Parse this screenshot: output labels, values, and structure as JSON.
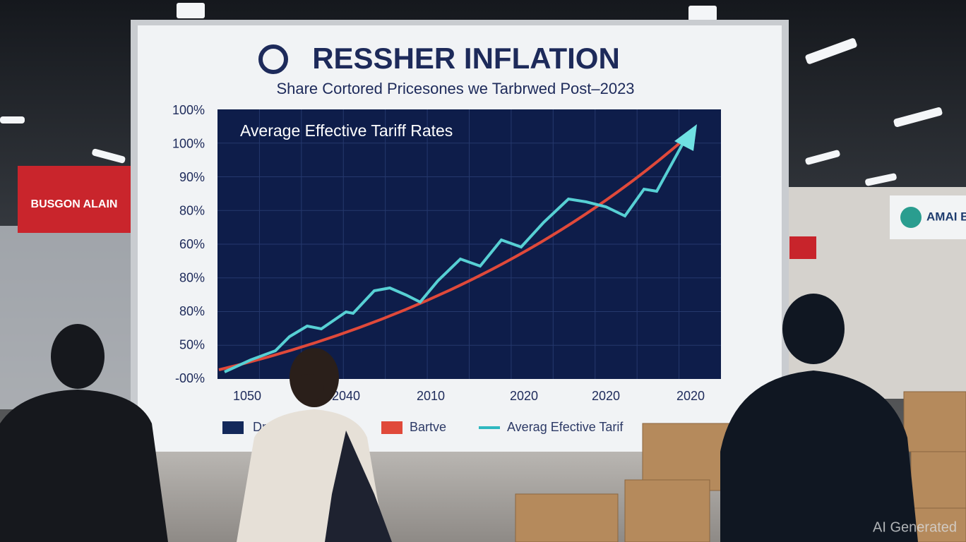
{
  "screen": {
    "title": "RESSHER INFLATION",
    "subtitle": "Share Cortored Pricesones we Tarbrwed Post–2023",
    "chart": {
      "heading": "Average Effective Tariff Rates",
      "y_labels": [
        "100%",
        "100%",
        "90%",
        "80%",
        "60%",
        "80%",
        "80%",
        "50%",
        "-00%"
      ],
      "x_labels": [
        "1050",
        "2040",
        "2010",
        "2020",
        "2020",
        "2020"
      ],
      "legend": [
        "Dr",
        "Bartve",
        "Averag Efective Tarif"
      ]
    }
  },
  "signs": {
    "left_sign": "BUSGON ALAIN",
    "right_sign": "AMAI BUSC"
  },
  "watermark": "AI Generated"
}
